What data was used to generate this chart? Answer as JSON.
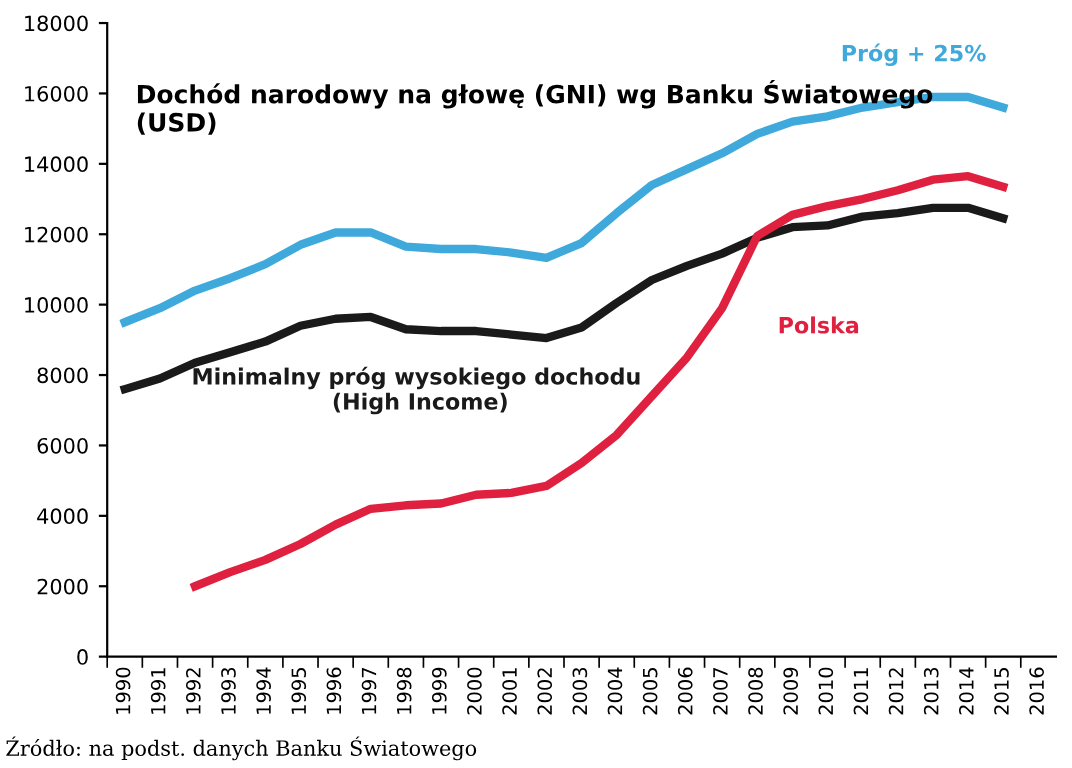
{
  "chart_data": {
    "type": "line",
    "title": "Dochód narodowy na głowę (GNI) wg Banku Światowego (USD)",
    "categories": [
      "1990",
      "1991",
      "1992",
      "1993",
      "1994",
      "1995",
      "1996",
      "1997",
      "1998",
      "1999",
      "2000",
      "2001",
      "2002",
      "2003",
      "2004",
      "2005",
      "2006",
      "2007",
      "2008",
      "2009",
      "2010",
      "2011",
      "2012",
      "2013",
      "2014",
      "2015",
      "2016"
    ],
    "series": [
      {
        "name": "Próg + 25%",
        "color": "#3fa9db",
        "values": [
          9500,
          9900,
          10400,
          10750,
          11150,
          11700,
          12050,
          12050,
          11650,
          11580,
          11580,
          11480,
          11330,
          11750,
          12600,
          13400,
          13850,
          14300,
          14850,
          15200,
          15350,
          15600,
          15750,
          15900,
          15900,
          15600,
          null
        ]
      },
      {
        "name": "Minimalny próg wysokiego dochodu  (High Income)",
        "color": "#1a1a1a",
        "values": [
          7600,
          7900,
          8350,
          8650,
          8950,
          9400,
          9600,
          9650,
          9300,
          9250,
          9250,
          9150,
          9050,
          9350,
          10050,
          10700,
          11100,
          11450,
          11900,
          12200,
          12250,
          12500,
          12600,
          12750,
          12750,
          12450,
          null
        ]
      },
      {
        "name": "Polska",
        "color": "#e0203f",
        "values": [
          null,
          null,
          2000,
          2400,
          2750,
          3200,
          3750,
          4200,
          4300,
          4350,
          4600,
          4650,
          4850,
          5500,
          6300,
          7400,
          8500,
          9900,
          11950,
          12550,
          12800,
          13000,
          13250,
          13550,
          13650,
          13350,
          null
        ]
      }
    ],
    "ylim": [
      0,
      18000
    ],
    "yticks": [
      0,
      2000,
      4000,
      6000,
      8000,
      10000,
      12000,
      14000,
      16000,
      18000
    ],
    "grid": false,
    "legend": false,
    "marker": "none",
    "line_style": "solid",
    "annotations": [
      "Źródło: na podst. danych Banku Światowego"
    ]
  }
}
